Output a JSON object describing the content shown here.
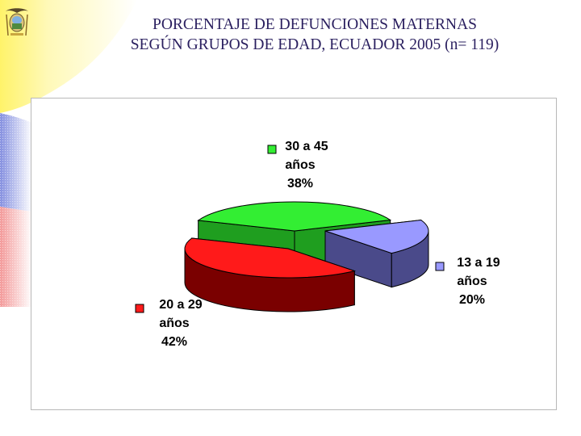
{
  "title_line1": "PORCENTAJE DE DEFUNCIONES MATERNAS",
  "title_line2": "SEGÚN GRUPOS DE EDAD, ECUADOR 2005 (n= 119)",
  "emblem_icon": "ecuador-coat-of-arms",
  "colors": {
    "background_yellow": "#fff68a",
    "background_blue": "#8c96e0",
    "background_red": "#f5a3a3",
    "title_text": "#2a1f5f"
  },
  "chart_data": {
    "type": "pie",
    "title": "",
    "legend": "none",
    "categories": [
      "30 a 45 años",
      "13 a 19 años",
      "20 a 29 años"
    ],
    "values": [
      38,
      20,
      42
    ],
    "unit": "%",
    "slices": [
      {
        "label_line1": "30 a 45",
        "label_line2": "años",
        "value_label": "38%",
        "value": 38,
        "color": "#33ee33",
        "side": "#1f9e1f"
      },
      {
        "label_line1": "13 a 19",
        "label_line2": "años",
        "value_label": "20%",
        "value": 20,
        "color": "#9999ff",
        "side": "#4a4a8a"
      },
      {
        "label_line1": "20 a 29",
        "label_line2": "años",
        "value_label": "42%",
        "value": 42,
        "color": "#ff1a1a",
        "side": "#7a0000"
      }
    ]
  }
}
